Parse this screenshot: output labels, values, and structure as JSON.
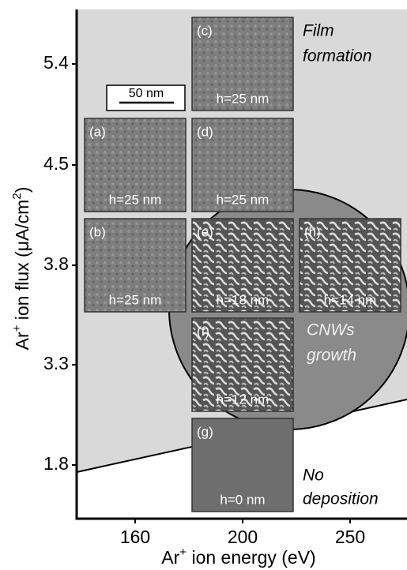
{
  "chart_data": {
    "type": "image-map",
    "x_label": [
      "Ar",
      "+",
      " ion energy  (eV)"
    ],
    "y_label": [
      "Ar",
      "+",
      " ion flux (μA/cm",
      "2",
      ")"
    ],
    "xticks": [
      160,
      200,
      250
    ],
    "yticks": [
      5.4,
      4.5,
      3.8,
      3.3,
      1.8
    ],
    "scale_bar": "50 nm",
    "panels": [
      {
        "label": "(c)",
        "height": "h=25 nm",
        "x": 200,
        "y": 5.4
      },
      {
        "label": "(a)",
        "height": "h=25 nm",
        "x": 160,
        "y": 4.5
      },
      {
        "label": "(d)",
        "height": "h=25 nm",
        "x": 200,
        "y": 4.5
      },
      {
        "label": "(b)",
        "height": "h=25 nm",
        "x": 160,
        "y": 3.8
      },
      {
        "label": "(e)",
        "height": "h=18 nm",
        "x": 200,
        "y": 3.8
      },
      {
        "label": "(h)",
        "height": "h=14 nm",
        "x": 250,
        "y": 3.8
      },
      {
        "label": "(f)",
        "height": "h=12 nm",
        "x": 200,
        "y": 3.3
      },
      {
        "label": "(g)",
        "height": "h=0 nm",
        "x": 200,
        "y": 1.8
      }
    ],
    "regions": [
      {
        "name": [
          "Film",
          "formation"
        ]
      },
      {
        "name": [
          "CNWs",
          "growth"
        ]
      },
      {
        "name": [
          "No",
          "deposition"
        ]
      }
    ]
  }
}
